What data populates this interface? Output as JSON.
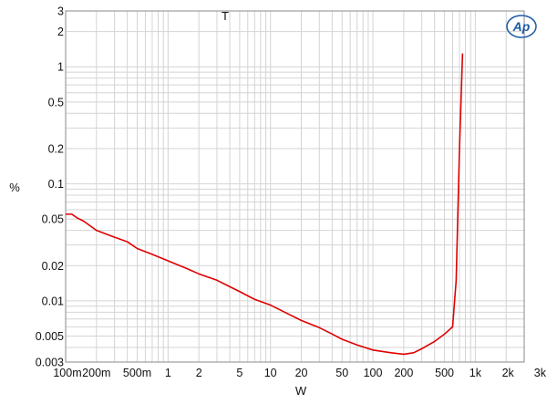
{
  "chart_data": {
    "type": "line",
    "title": "",
    "xlabel": "W",
    "ylabel": "%",
    "marker_text": "T",
    "x_scale": "log",
    "y_scale": "log",
    "xlim": [
      0.1,
      3000
    ],
    "ylim": [
      0.003,
      3
    ],
    "grid": true,
    "x_ticks": [
      {
        "v": 0.1,
        "label": "100m"
      },
      {
        "v": 0.2,
        "label": "200m"
      },
      {
        "v": 0.5,
        "label": "500m"
      },
      {
        "v": 1,
        "label": "1"
      },
      {
        "v": 2,
        "label": "2"
      },
      {
        "v": 5,
        "label": "5"
      },
      {
        "v": 10,
        "label": "10"
      },
      {
        "v": 20,
        "label": "20"
      },
      {
        "v": 50,
        "label": "50"
      },
      {
        "v": 100,
        "label": "100"
      },
      {
        "v": 200,
        "label": "200"
      },
      {
        "v": 500,
        "label": "500"
      },
      {
        "v": 1000,
        "label": "1k"
      },
      {
        "v": 2000,
        "label": "2k"
      },
      {
        "v": 3000,
        "label": "3k"
      }
    ],
    "y_ticks": [
      {
        "v": 0.003,
        "label": "0.003"
      },
      {
        "v": 0.005,
        "label": "0.005"
      },
      {
        "v": 0.01,
        "label": "0.01"
      },
      {
        "v": 0.02,
        "label": "0.02"
      },
      {
        "v": 0.05,
        "label": "0.05"
      },
      {
        "v": 0.1,
        "label": "0.1"
      },
      {
        "v": 0.2,
        "label": "0.2"
      },
      {
        "v": 0.5,
        "label": "0.5"
      },
      {
        "v": 1,
        "label": "1"
      },
      {
        "v": 2,
        "label": "2"
      },
      {
        "v": 3,
        "label": "3"
      }
    ],
    "series": [
      {
        "color": "#e00000",
        "x": [
          0.1,
          0.115,
          0.13,
          0.15,
          0.2,
          0.3,
          0.4,
          0.5,
          0.7,
          1,
          1.5,
          2,
          3,
          5,
          7,
          10,
          15,
          20,
          30,
          40,
          50,
          70,
          100,
          150,
          200,
          250,
          300,
          400,
          500,
          600,
          650,
          700,
          750
        ],
        "y": [
          0.055,
          0.055,
          0.051,
          0.048,
          0.04,
          0.035,
          0.032,
          0.028,
          0.025,
          0.022,
          0.019,
          0.017,
          0.015,
          0.012,
          0.0103,
          0.0092,
          0.0077,
          0.0068,
          0.0059,
          0.0052,
          0.0047,
          0.0042,
          0.0038,
          0.0036,
          0.0035,
          0.0036,
          0.0039,
          0.0045,
          0.0052,
          0.006,
          0.015,
          0.2,
          1.3
        ]
      }
    ]
  },
  "logo": {
    "text": "Ap",
    "color": "#1e5aa8"
  }
}
